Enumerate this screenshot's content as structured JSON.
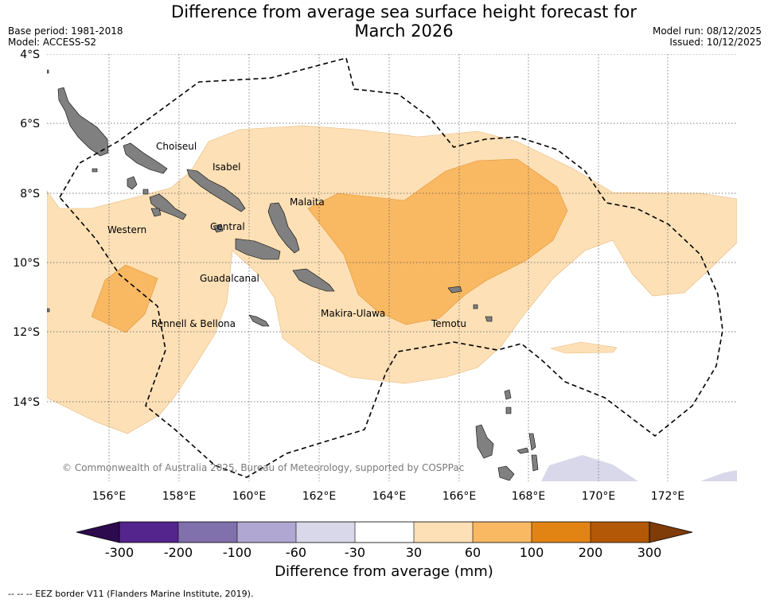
{
  "title": {
    "line1": "Difference from average sea surface height forecast for",
    "line2": "March 2026"
  },
  "meta": {
    "base_period": "Base period: 1981-2018",
    "model": "Model: ACCESS-S2",
    "model_run": "Model run: 08/12/2025",
    "issued": "Issued: 10/12/2025"
  },
  "map": {
    "lat_labels": [
      "4°S",
      "6°S",
      "8°S",
      "10°S",
      "12°S",
      "14°S"
    ],
    "lon_labels": [
      "156°E",
      "158°E",
      "160°E",
      "162°E",
      "164°E",
      "166°E",
      "168°E",
      "170°E",
      "172°E"
    ],
    "regions": {
      "choiseul": "Choiseul",
      "isabel": "Isabel",
      "malaita": "Malaita",
      "western": "Western",
      "central": "Central",
      "guadalcanal": "Guadalcanal",
      "makira": "Makira-Ulawa",
      "temotu": "Temotu",
      "rennell": "Rennell & Bellona"
    },
    "copyright": "© Commonwealth of Australia 2025, Bureau of Meteorology, supported by COSPPac"
  },
  "colorbar": {
    "title": "Difference from average (mm)",
    "ticks": [
      "-300",
      "-200",
      "-100",
      "-60",
      "-30",
      "30",
      "60",
      "100",
      "200",
      "300"
    ],
    "colors": {
      "neg_extend": "#2d0a4e",
      "c1": "#54258c",
      "c2": "#8070ac",
      "c3": "#b0a8d2",
      "c4": "#d8d8ea",
      "c5": "#ffffff",
      "c6": "#fde0b6",
      "c7": "#f9b862",
      "c8": "#e28414",
      "c9": "#b35806",
      "pos_extend": "#7f3b08"
    }
  },
  "legend": {
    "eez": "--  --  -- EEZ border V11 (Flanders Marine Institute, 2019)."
  }
}
